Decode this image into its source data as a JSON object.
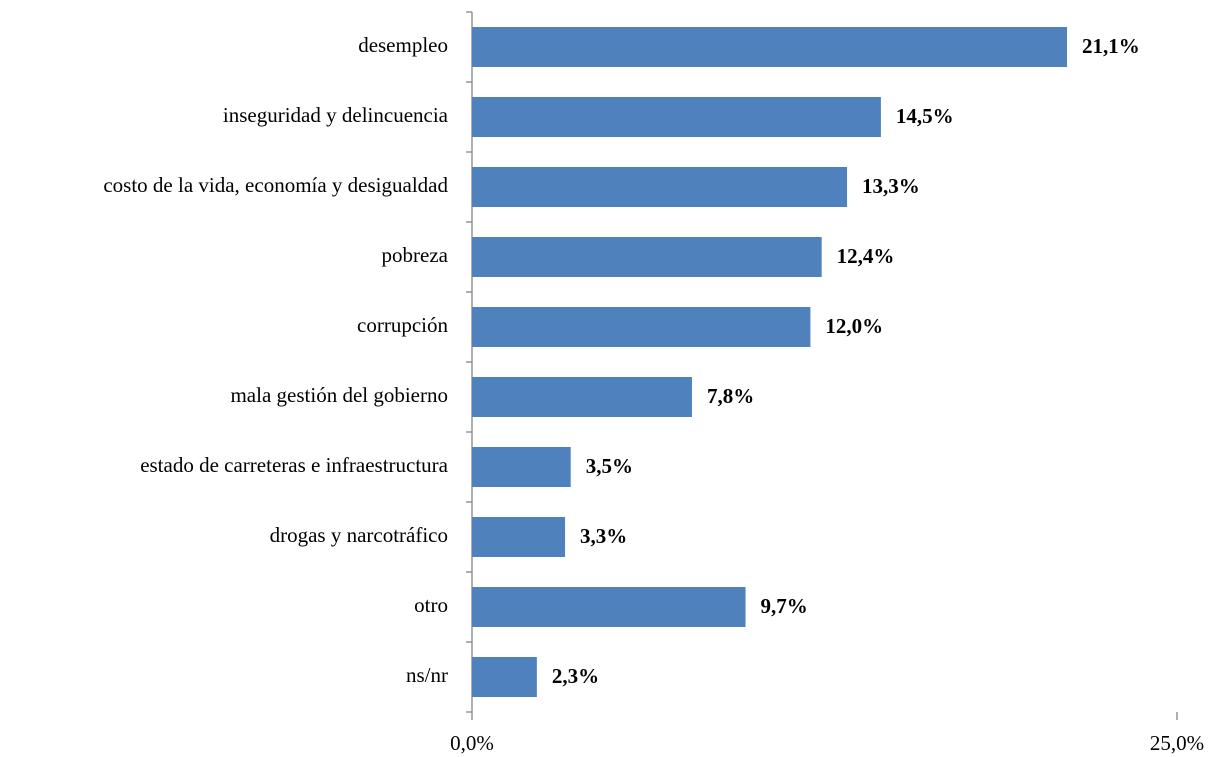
{
  "chart_data": {
    "type": "bar",
    "orientation": "horizontal",
    "categories": [
      "desempleo",
      "inseguridad y delincuencia",
      "costo de la vida, economía y desigualdad",
      "pobreza",
      "corrupción",
      "mala gestión del gobierno",
      "estado de carreteras e infraestructura",
      "drogas y narcotráfico",
      "otro",
      "ns/nr"
    ],
    "values": [
      21.1,
      14.5,
      13.3,
      12.4,
      12.0,
      7.8,
      3.5,
      3.3,
      9.7,
      2.3
    ],
    "value_labels": [
      "21,1%",
      "14,5%",
      "13,3%",
      "12,4%",
      "12,0%",
      "7,8%",
      "3,5%",
      "3,3%",
      "9,7%",
      "2,3%"
    ],
    "color": "#4f81bd",
    "xlim": [
      0,
      25
    ],
    "xticks": [
      {
        "value": 0,
        "label": "0,0%"
      },
      {
        "value": 25,
        "label": "25,0%"
      }
    ]
  }
}
